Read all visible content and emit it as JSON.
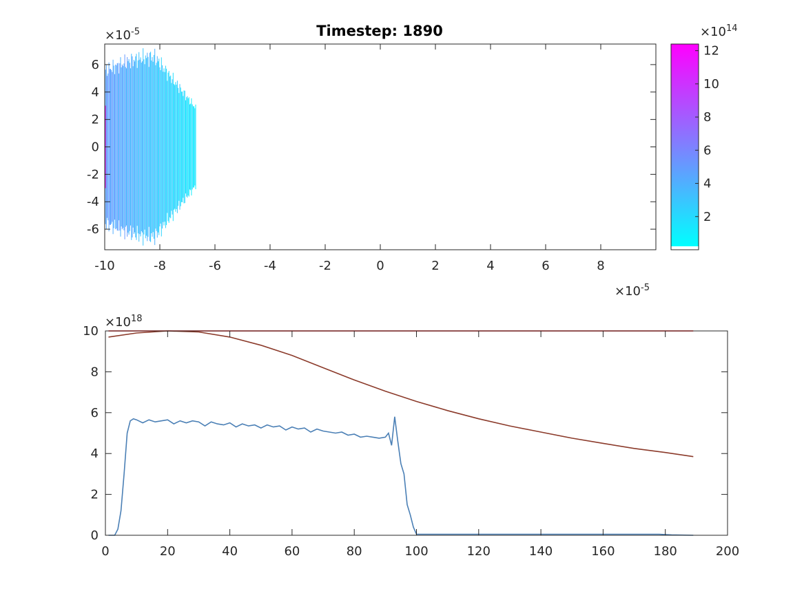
{
  "chart_data": [
    {
      "type": "heatmap",
      "title": "Timestep: 1890",
      "x_exponent": "×10",
      "x_exponent_power": "-5",
      "y_exponent": "×10",
      "y_exponent_power": "-5",
      "xlim": [
        -10,
        10
      ],
      "ylim": [
        -7.5,
        7.5
      ],
      "x_ticks": [
        -10,
        -8,
        -6,
        -4,
        -2,
        0,
        2,
        4,
        6,
        8
      ],
      "y_ticks": [
        -6,
        -4,
        -2,
        0,
        2,
        4,
        6
      ],
      "x_tick_labels": [
        "-10",
        "-8",
        "-6",
        "-4",
        "-2",
        "0",
        "2",
        "4",
        "6",
        "8"
      ],
      "y_tick_labels": [
        "-6",
        "-4",
        "-2",
        "0",
        "2",
        "4",
        "6"
      ],
      "colors": {
        "low": "#00ffff",
        "high": "#ff00ff"
      },
      "field_extent_x": [
        -10,
        -6.7
      ],
      "colorbar": {
        "exponent": "×10",
        "exponent_power": "14",
        "clim": [
          0,
          12.4
        ],
        "ticks": [
          2,
          4,
          6,
          8,
          10,
          12
        ],
        "tick_labels": [
          "2",
          "4",
          "6",
          "8",
          "10",
          "12"
        ]
      }
    },
    {
      "type": "line",
      "y_exponent": "×10",
      "y_exponent_power": "18",
      "xlim": [
        0,
        200
      ],
      "ylim": [
        0,
        10
      ],
      "x_ticks": [
        0,
        20,
        40,
        60,
        80,
        100,
        120,
        140,
        160,
        180,
        200
      ],
      "y_ticks": [
        0,
        2,
        4,
        6,
        8,
        10
      ],
      "x_tick_labels": [
        "0",
        "20",
        "40",
        "60",
        "80",
        "100",
        "120",
        "140",
        "160",
        "180",
        "200"
      ],
      "y_tick_labels": [
        "0",
        "2",
        "4",
        "6",
        "8",
        "10"
      ],
      "series": [
        {
          "color": "#ff0000",
          "x": [
            1,
            189
          ],
          "y": [
            10,
            10
          ]
        },
        {
          "color": "#8b3a2a",
          "x": [
            1,
            10,
            20,
            30,
            40,
            50,
            60,
            70,
            80,
            90,
            100,
            110,
            120,
            130,
            140,
            150,
            160,
            170,
            180,
            189
          ],
          "y": [
            9.7,
            9.9,
            10.0,
            9.95,
            9.7,
            9.3,
            8.8,
            8.2,
            7.6,
            7.05,
            6.55,
            6.1,
            5.7,
            5.35,
            5.05,
            4.75,
            4.5,
            4.25,
            4.05,
            3.85
          ]
        },
        {
          "color": "#4a7fb5",
          "x": [
            1,
            3,
            4,
            5,
            6,
            7,
            8,
            9,
            10,
            12,
            14,
            16,
            18,
            20,
            22,
            24,
            26,
            28,
            30,
            32,
            34,
            36,
            38,
            40,
            42,
            44,
            46,
            48,
            50,
            52,
            54,
            56,
            58,
            60,
            62,
            64,
            66,
            68,
            70,
            72,
            74,
            76,
            78,
            80,
            82,
            84,
            86,
            88,
            90,
            91,
            92,
            93,
            94,
            95,
            96,
            97,
            98,
            99,
            100,
            101,
            120,
            140,
            160,
            178,
            182,
            189
          ],
          "y": [
            0,
            0,
            0.3,
            1.2,
            3.0,
            5.0,
            5.6,
            5.7,
            5.65,
            5.5,
            5.65,
            5.55,
            5.6,
            5.65,
            5.45,
            5.6,
            5.5,
            5.6,
            5.55,
            5.35,
            5.55,
            5.45,
            5.4,
            5.5,
            5.3,
            5.45,
            5.35,
            5.4,
            5.25,
            5.4,
            5.3,
            5.35,
            5.15,
            5.3,
            5.2,
            5.25,
            5.05,
            5.2,
            5.1,
            5.05,
            5.0,
            5.05,
            4.9,
            4.95,
            4.8,
            4.85,
            4.8,
            4.75,
            4.8,
            5.0,
            4.4,
            5.8,
            4.6,
            3.5,
            3.0,
            1.5,
            1.0,
            0.4,
            0.05,
            0.05,
            0.05,
            0.05,
            0.05,
            0.05,
            0.02,
            0
          ]
        }
      ]
    }
  ]
}
